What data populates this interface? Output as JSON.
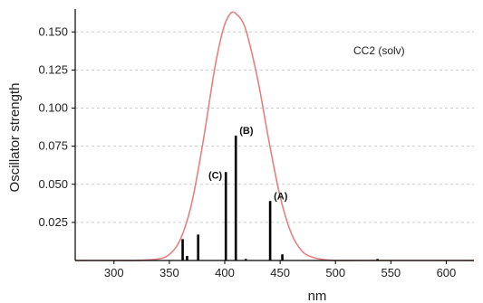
{
  "chart_data": {
    "type": "line",
    "title": "",
    "xlabel": "nm",
    "ylabel": "Oscillator strength",
    "xlim": [
      265,
      625
    ],
    "ylim": [
      0,
      0.165
    ],
    "x_ticks": [
      300,
      350,
      400,
      450,
      500,
      550,
      600
    ],
    "y_ticks": [
      0.025,
      0.05,
      0.075,
      0.1,
      0.125,
      0.15
    ],
    "grid": "horizontal dashed",
    "legend_label": "CC2 (solv)",
    "legend_position": "top-right",
    "colors": {
      "curve": "#e88080",
      "sticks": "#000000",
      "grid": "#cccccc",
      "axis": "#000000"
    },
    "series": [
      {
        "type": "line",
        "x": [
          265,
          300,
          320,
          340,
          350,
          360,
          370,
          380,
          390,
          395,
          400,
          405,
          408,
          410,
          415,
          420,
          430,
          440,
          450,
          460,
          470,
          480,
          490,
          500,
          520,
          550,
          600,
          625
        ],
        "y": [
          0.0,
          0.0,
          0.0,
          0.001,
          0.004,
          0.014,
          0.037,
          0.076,
          0.122,
          0.141,
          0.155,
          0.162,
          0.163,
          0.162,
          0.158,
          0.149,
          0.118,
          0.078,
          0.042,
          0.018,
          0.006,
          0.002,
          0.0005,
          0.0,
          0.0,
          0.0,
          0.0,
          0.0
        ]
      },
      {
        "type": "stick",
        "x": [
          362,
          366,
          376,
          401,
          410,
          419,
          441,
          452,
          538
        ],
        "y": [
          0.014,
          0.003,
          0.017,
          0.058,
          0.082,
          0.001,
          0.039,
          0.004,
          0.001
        ]
      }
    ],
    "annotations": [
      {
        "label": "(A)",
        "x": 441,
        "y": 0.039
      },
      {
        "label": "(B)",
        "x": 410,
        "y": 0.082
      },
      {
        "label": "(C)",
        "x": 401,
        "y": 0.058
      }
    ]
  }
}
